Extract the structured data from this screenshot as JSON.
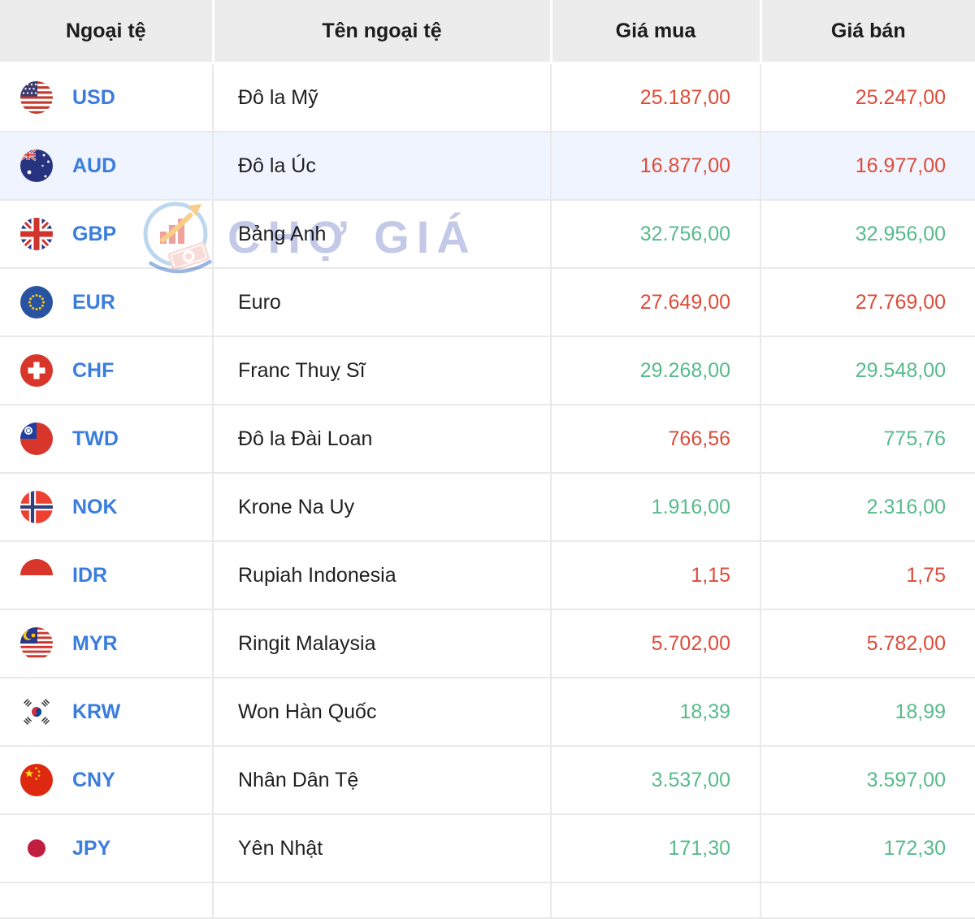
{
  "header": {
    "col_currency": "Ngoại tệ",
    "col_name": "Tên ngoại tệ",
    "col_buy": "Giá mua",
    "col_sell": "Giá bán"
  },
  "watermark": {
    "text": "CHỢ GIÁ"
  },
  "colors": {
    "red": "#dd4b39",
    "green": "#57bb8a",
    "code_blue": "#3b7ddd",
    "header_bg": "#ececec",
    "row_highlight_bg": "#eff4fe",
    "watermark": "#c3c9e6"
  },
  "rows": [
    {
      "code": "USD",
      "flag": "usd",
      "name": "Đô la Mỹ",
      "buy": "25.187,00",
      "buy_color": "red",
      "sell": "25.247,00",
      "sell_color": "red",
      "highlighted": false
    },
    {
      "code": "AUD",
      "flag": "aud",
      "name": "Đô la Úc",
      "buy": "16.877,00",
      "buy_color": "red",
      "sell": "16.977,00",
      "sell_color": "red",
      "highlighted": true
    },
    {
      "code": "GBP",
      "flag": "gbp",
      "name": "Bảng Anh",
      "buy": "32.756,00",
      "buy_color": "green",
      "sell": "32.956,00",
      "sell_color": "green",
      "highlighted": false
    },
    {
      "code": "EUR",
      "flag": "eur",
      "name": "Euro",
      "buy": "27.649,00",
      "buy_color": "red",
      "sell": "27.769,00",
      "sell_color": "red",
      "highlighted": false
    },
    {
      "code": "CHF",
      "flag": "chf",
      "name": "Franc Thuỵ Sĩ",
      "buy": "29.268,00",
      "buy_color": "green",
      "sell": "29.548,00",
      "sell_color": "green",
      "highlighted": false
    },
    {
      "code": "TWD",
      "flag": "twd",
      "name": "Đô la Đài Loan",
      "buy": "766,56",
      "buy_color": "red",
      "sell": "775,76",
      "sell_color": "green",
      "highlighted": false
    },
    {
      "code": "NOK",
      "flag": "nok",
      "name": "Krone Na Uy",
      "buy": "1.916,00",
      "buy_color": "green",
      "sell": "2.316,00",
      "sell_color": "green",
      "highlighted": false
    },
    {
      "code": "IDR",
      "flag": "idr",
      "name": "Rupiah Indonesia",
      "buy": "1,15",
      "buy_color": "red",
      "sell": "1,75",
      "sell_color": "red",
      "highlighted": false
    },
    {
      "code": "MYR",
      "flag": "myr",
      "name": "Ringit Malaysia",
      "buy": "5.702,00",
      "buy_color": "red",
      "sell": "5.782,00",
      "sell_color": "red",
      "highlighted": false
    },
    {
      "code": "KRW",
      "flag": "krw",
      "name": "Won Hàn Quốc",
      "buy": "18,39",
      "buy_color": "green",
      "sell": "18,99",
      "sell_color": "green",
      "highlighted": false
    },
    {
      "code": "CNY",
      "flag": "cny",
      "name": "Nhân Dân Tệ",
      "buy": "3.537,00",
      "buy_color": "green",
      "sell": "3.597,00",
      "sell_color": "green",
      "highlighted": false
    },
    {
      "code": "JPY",
      "flag": "jpy",
      "name": "Yên Nhật",
      "buy": "171,30",
      "buy_color": "green",
      "sell": "172,30",
      "sell_color": "green",
      "highlighted": false
    }
  ]
}
